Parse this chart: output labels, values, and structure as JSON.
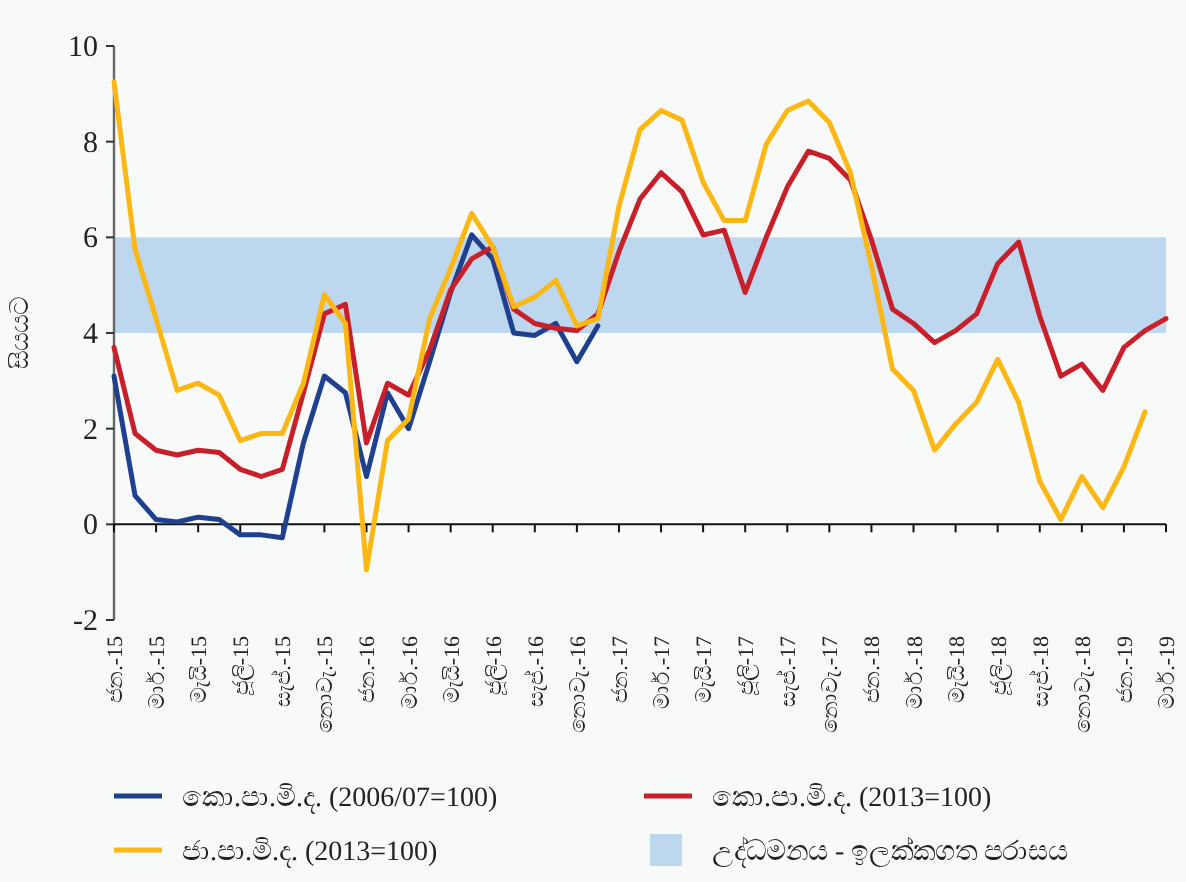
{
  "chart_data": {
    "type": "line",
    "ylabel": "සියයට",
    "categories": [
      "ජන.-15",
      null,
      "මාර්.-15",
      null,
      "මැයි-15",
      null,
      "ජූලි-15",
      null,
      "සැප්.-15",
      null,
      "නොවැ.-15",
      null,
      "ජන.-16",
      null,
      "මාර්.-16",
      null,
      "මැයි-16",
      null,
      "ජූලි-16",
      null,
      "සැප්.-16",
      null,
      "නොවැ.-16",
      null,
      "ජන.-17",
      null,
      "මාර්.-17",
      null,
      "මැයි-17",
      null,
      "ජූලි-17",
      null,
      "සැප්.-17",
      null,
      "නොවැ.-17",
      null,
      "ජන.-18",
      null,
      "මාර්.-18",
      null,
      "මැයි-18",
      null,
      "ජූලි-18",
      null,
      "සැප්.-18",
      null,
      "නොවැ.-18",
      null,
      "ජන.-19",
      null,
      "මාර්.-19"
    ],
    "series": [
      {
        "name": "කො.පා.මි.ද. (2006/07=100)",
        "color": "#1f3f8f",
        "values": [
          3.1,
          0.6,
          0.1,
          0.05,
          0.15,
          0.1,
          -0.22,
          -0.22,
          -0.28,
          1.7,
          3.1,
          2.75,
          1.0,
          2.75,
          2.0,
          3.4,
          4.85,
          6.05,
          5.55,
          4.0,
          3.95,
          4.2,
          3.4,
          4.15,
          null,
          null,
          null,
          null,
          null,
          null,
          null,
          null,
          null,
          null,
          null,
          null,
          null,
          null,
          null,
          null,
          null,
          null,
          null,
          null,
          null,
          null,
          null,
          null,
          null,
          null,
          null
        ]
      },
      {
        "name": "කො.පා.මි.ද. (2013=100)",
        "color": "#c8202a",
        "values": [
          3.7,
          1.9,
          1.55,
          1.45,
          1.55,
          1.5,
          1.15,
          1.0,
          1.15,
          2.75,
          4.4,
          4.6,
          1.7,
          2.95,
          2.7,
          3.65,
          4.9,
          5.55,
          5.8,
          4.5,
          4.2,
          4.1,
          4.05,
          4.4,
          5.7,
          6.8,
          7.35,
          6.95,
          6.05,
          6.15,
          4.85,
          6.0,
          7.05,
          7.8,
          7.65,
          7.2,
          5.95,
          4.5,
          4.2,
          3.8,
          4.05,
          4.4,
          5.45,
          5.9,
          4.35,
          3.1,
          3.35,
          2.8,
          3.7,
          4.05,
          4.3
        ]
      },
      {
        "name": "ජා.පා.මි.ද. (2013=100)",
        "color": "#fbb714",
        "values": [
          9.25,
          5.75,
          4.3,
          2.8,
          2.95,
          2.7,
          1.75,
          1.9,
          1.9,
          2.95,
          4.8,
          4.2,
          -0.95,
          1.75,
          2.2,
          4.3,
          5.35,
          6.5,
          5.8,
          4.55,
          4.75,
          5.1,
          4.15,
          4.3,
          6.65,
          8.25,
          8.65,
          8.45,
          7.15,
          6.35,
          6.35,
          7.95,
          8.65,
          8.85,
          8.4,
          7.35,
          5.4,
          3.25,
          2.8,
          1.55,
          2.1,
          2.55,
          3.45,
          2.55,
          0.9,
          0.1,
          1.0,
          0.35,
          1.2,
          2.35,
          null
        ]
      }
    ],
    "bands": [
      {
        "axis": "y",
        "from": 4,
        "to": 6,
        "label": "උද්ධමනය - ඉලක්කගත පරාසය",
        "color": "#bdd7ee"
      }
    ],
    "ylim": [
      -2,
      10
    ],
    "yticks": [
      -2,
      0,
      2,
      4,
      6,
      8,
      10
    ],
    "legend": "bottom",
    "marker": "none",
    "line_style": "solid"
  }
}
